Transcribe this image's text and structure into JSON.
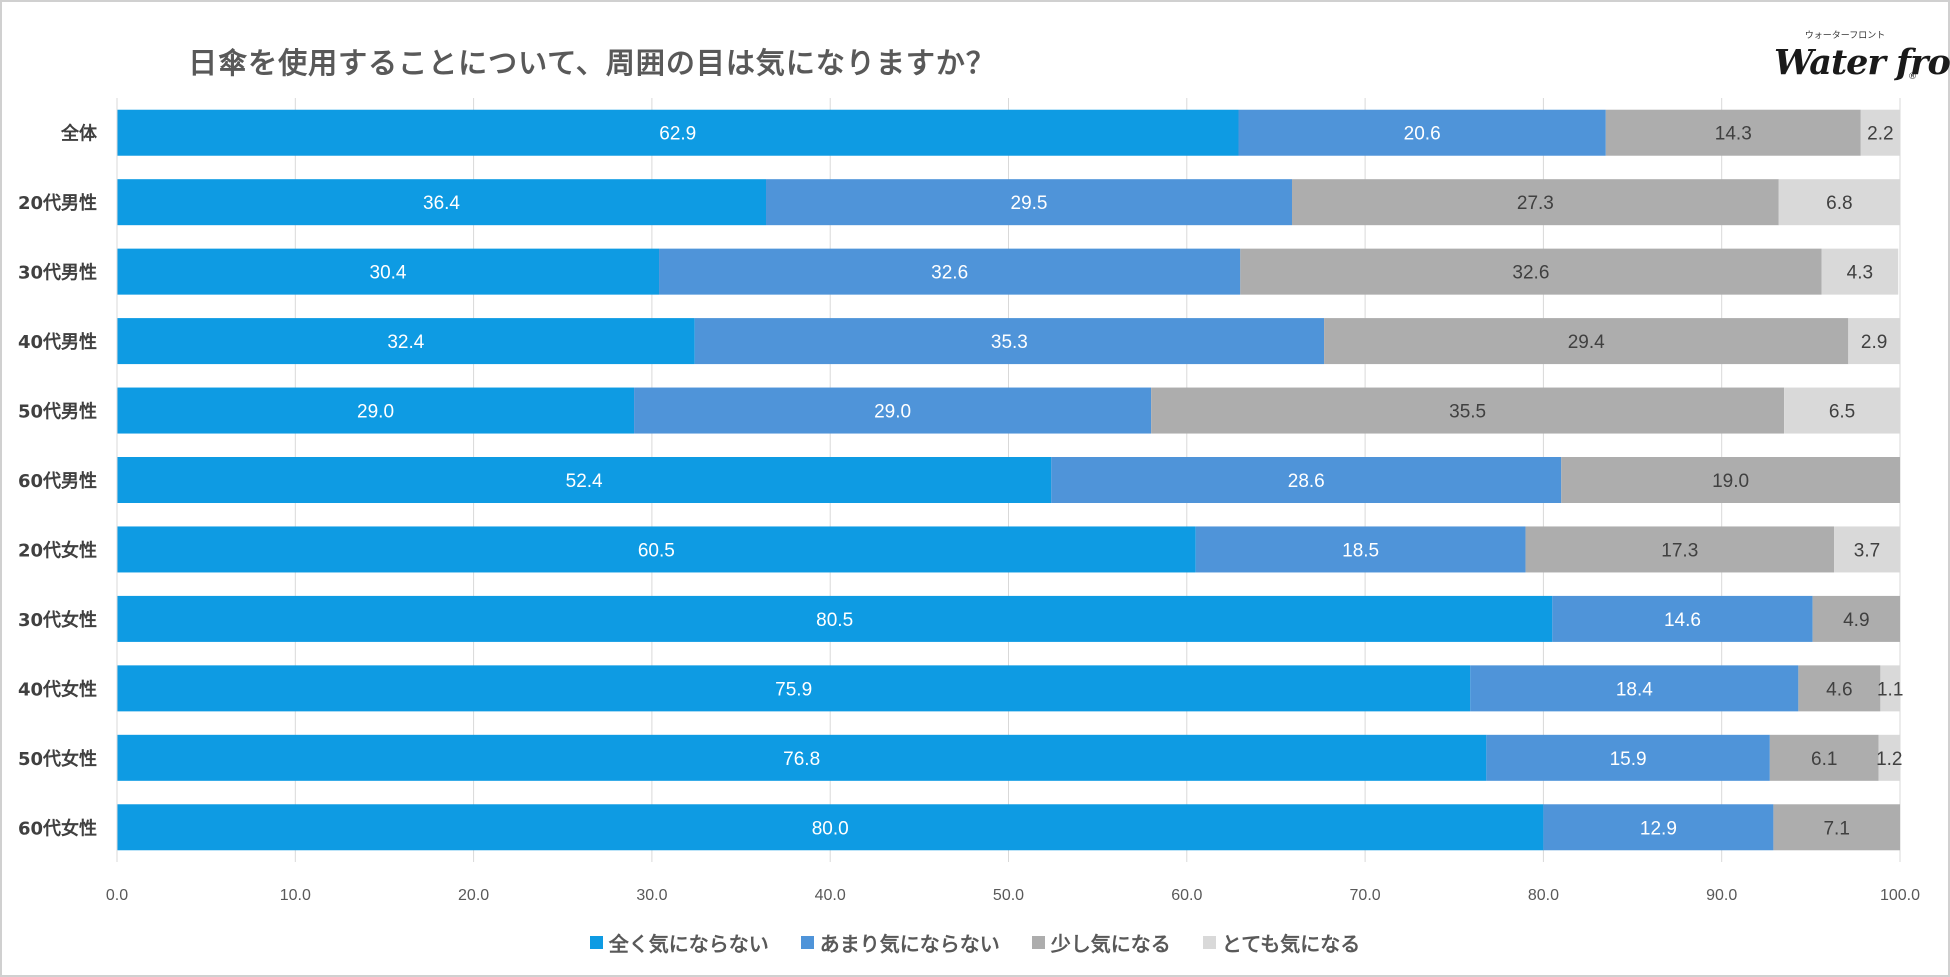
{
  "chart_data": {
    "type": "bar",
    "orientation": "horizontal",
    "stacked": true,
    "title": "日傘を使用することについて、周囲の目は気になりますか？",
    "categories": [
      "全体",
      "20代男性",
      "30代男性",
      "40代男性",
      "50代男性",
      "60代男性",
      "20代女性",
      "30代女性",
      "40代女性",
      "50代女性",
      "60代女性"
    ],
    "series": [
      {
        "name": "全く気にならない",
        "color": "#0e9be3",
        "label_color": "#ffffff",
        "values": [
          62.9,
          36.4,
          30.4,
          32.4,
          29.0,
          52.4,
          60.5,
          80.5,
          75.9,
          76.8,
          80.0
        ],
        "labels": [
          "62.9",
          "36.4",
          "30.4",
          "32.4",
          "29.0",
          "52.4",
          "60.5",
          "80.5",
          "75.9",
          "76.8",
          "80.0"
        ]
      },
      {
        "name": "あまり気にならない",
        "color": "#4f94d9",
        "label_color": "#ffffff",
        "values": [
          20.6,
          29.5,
          32.6,
          35.3,
          29.0,
          28.6,
          18.5,
          14.6,
          18.4,
          15.9,
          12.9
        ],
        "labels": [
          "20.6",
          "29.5",
          "32.6",
          "35.3",
          "29.0",
          "28.6",
          "18.5",
          "14.6",
          "18.4",
          "15.9",
          "12.9"
        ]
      },
      {
        "name": "少し気になる",
        "color": "#adadad",
        "label_color": "#404040",
        "values": [
          14.3,
          27.3,
          32.6,
          29.4,
          35.5,
          19.0,
          17.3,
          4.9,
          4.6,
          6.1,
          7.1
        ],
        "labels": [
          "14.3",
          "27.3",
          "32.6",
          "29.4",
          "35.5",
          "19.0",
          "17.3",
          "4.9",
          "4.6",
          "6.1",
          "7.1"
        ]
      },
      {
        "name": "とても気になる",
        "color": "#d9d9d9",
        "label_color": "#404040",
        "values": [
          2.2,
          6.8,
          4.3,
          2.9,
          6.5,
          0,
          3.7,
          0,
          1.1,
          1.2,
          0
        ],
        "labels": [
          "2.2",
          "6.8",
          "4.3",
          "2.9",
          "6.5",
          "",
          "3.7",
          "",
          "1.1",
          "1.2",
          ""
        ]
      }
    ],
    "xlim": [
      0,
      100
    ],
    "xticks": [
      "0.0",
      "10.0",
      "20.0",
      "30.0",
      "40.0",
      "50.0",
      "60.0",
      "70.0",
      "80.0",
      "90.0",
      "100.0"
    ],
    "grid": true,
    "legend_position": "bottom"
  },
  "logo": {
    "kana": "ウォーターフロント",
    "word": "Water front",
    "reg": "®"
  }
}
